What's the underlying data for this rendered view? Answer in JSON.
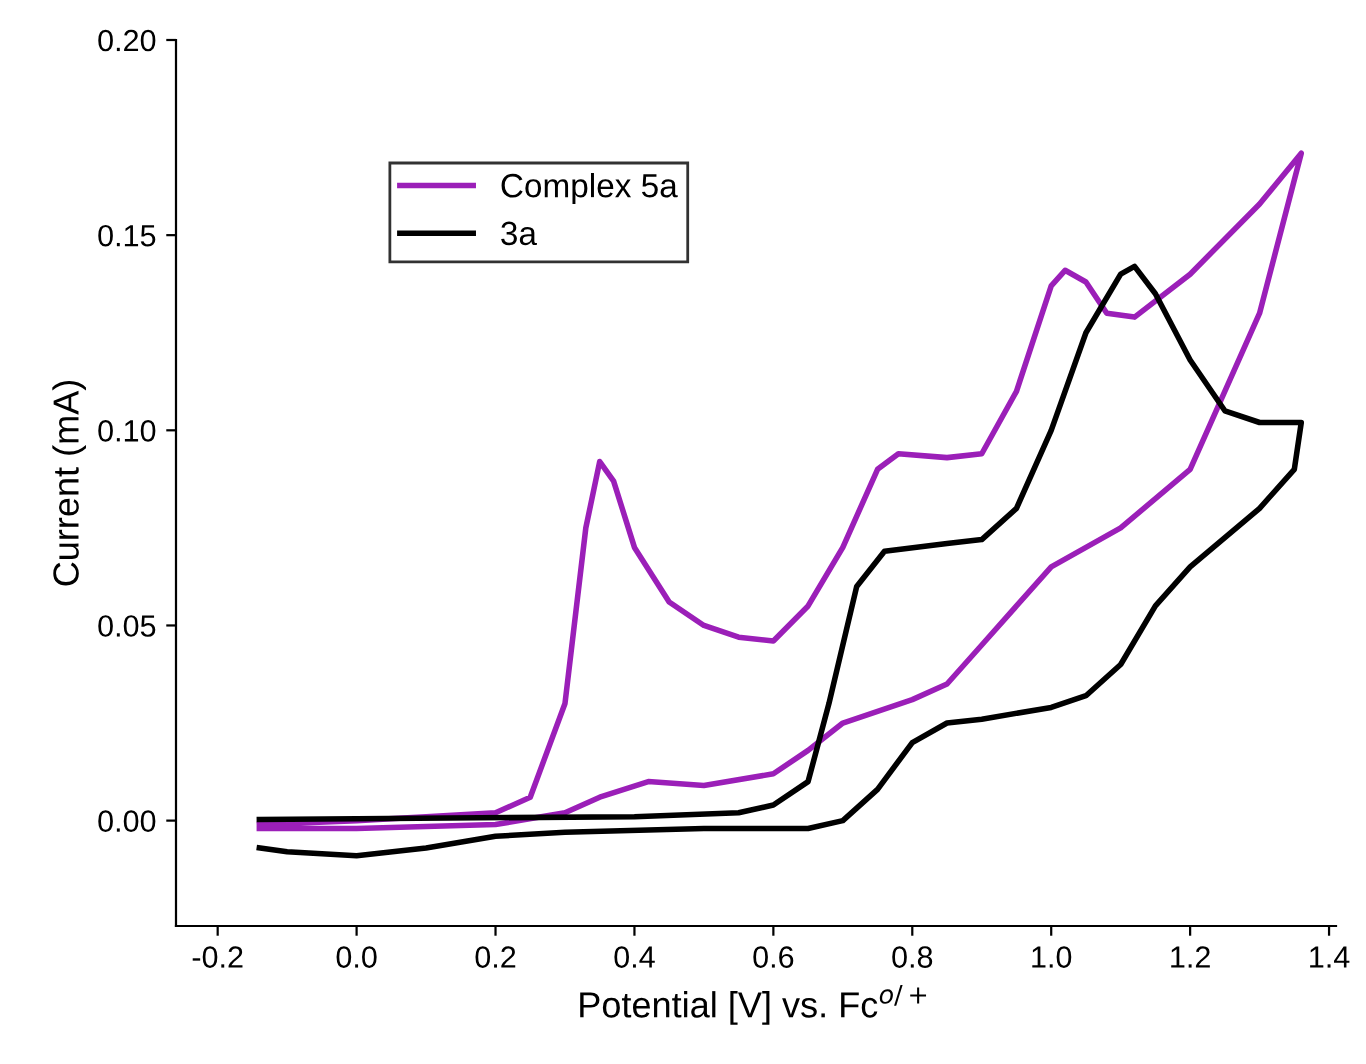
{
  "chart_data": {
    "type": "line",
    "xlabel": "Potential [V] vs. Fc$^{o/+}$",
    "ylabel": "Current (mA)",
    "xlim": [
      -0.26,
      1.41
    ],
    "ylim": [
      -0.027,
      0.2
    ],
    "xticks": [
      -0.2,
      {
        "value": 0,
        "label": "0.0"
      },
      0.2,
      0.4,
      0.6,
      0.8,
      {
        "value": 1,
        "label": "1.0"
      },
      1.2,
      1.4
    ],
    "yticks": [
      {
        "value": 0.0,
        "label": "0.00"
      },
      {
        "value": 0.05,
        "label": "0.05"
      },
      {
        "value": 0.1,
        "label": "0.10"
      },
      {
        "value": 0.15,
        "label": "0.15"
      },
      {
        "value": 0.2,
        "label": "0.20"
      }
    ],
    "grid": false,
    "legend": "top left",
    "line_style": "solid",
    "marker": "none",
    "series": [
      {
        "name": "Complex 5a",
        "color": "#9b1fb8",
        "x": [
          -0.14,
          0.0,
          0.1,
          0.2,
          0.25,
          0.3,
          0.33,
          0.35,
          0.37,
          0.4,
          0.45,
          0.5,
          0.55,
          0.6,
          0.65,
          0.7,
          0.75,
          0.78,
          0.85,
          0.9,
          0.95,
          1.0,
          1.02,
          1.05,
          1.08,
          1.12,
          1.2,
          1.3,
          1.36,
          1.3,
          1.2,
          1.1,
          1.0,
          0.95,
          0.9,
          0.85,
          0.8,
          0.7,
          0.65,
          0.6,
          0.5,
          0.42,
          0.35,
          0.3,
          0.2,
          0.0,
          -0.14
        ],
        "values": [
          -0.001,
          0.0,
          0.001,
          0.002,
          0.006,
          0.03,
          0.075,
          0.092,
          0.087,
          0.07,
          0.056,
          0.05,
          0.047,
          0.046,
          0.055,
          0.07,
          0.09,
          0.094,
          0.093,
          0.094,
          0.11,
          0.137,
          0.141,
          0.138,
          0.13,
          0.129,
          0.14,
          0.158,
          0.171,
          0.13,
          0.09,
          0.075,
          0.065,
          0.055,
          0.045,
          0.035,
          0.031,
          0.025,
          0.018,
          0.012,
          0.009,
          0.01,
          0.006,
          0.002,
          -0.001,
          -0.002,
          -0.002
        ]
      },
      {
        "name": "3a",
        "color": "#000000",
        "x": [
          -0.14,
          0.0,
          0.4,
          0.55,
          0.6,
          0.65,
          0.68,
          0.72,
          0.76,
          0.85,
          0.9,
          0.95,
          1.0,
          1.05,
          1.1,
          1.12,
          1.15,
          1.2,
          1.25,
          1.3,
          1.36,
          1.35,
          1.3,
          1.2,
          1.15,
          1.1,
          1.05,
          1.0,
          0.9,
          0.85,
          0.8,
          0.75,
          0.7,
          0.65,
          0.5,
          0.3,
          0.2,
          0.1,
          0.0,
          -0.1,
          -0.14
        ],
        "values": [
          0.0003,
          0.0005,
          0.001,
          0.002,
          0.004,
          0.01,
          0.03,
          0.06,
          0.069,
          0.071,
          0.072,
          0.08,
          0.1,
          0.125,
          0.14,
          0.142,
          0.135,
          0.118,
          0.105,
          0.102,
          0.102,
          0.09,
          0.08,
          0.065,
          0.055,
          0.04,
          0.032,
          0.029,
          0.026,
          0.025,
          0.02,
          0.008,
          0.0,
          -0.002,
          -0.002,
          -0.003,
          -0.004,
          -0.007,
          -0.009,
          -0.008,
          -0.007
        ]
      }
    ]
  }
}
